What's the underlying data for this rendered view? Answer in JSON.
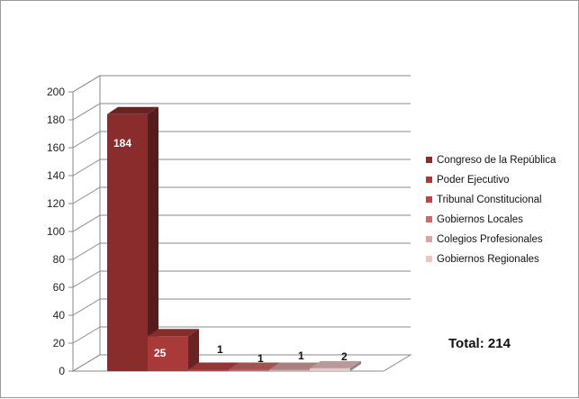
{
  "chart_data": {
    "type": "bar",
    "style": "3d",
    "categories": [
      "Congreso de la República",
      "Poder Ejecutivo",
      "Tribunal Constitucional",
      "Gobiernos Locales",
      "Colegios Profesionales",
      "Gobiernos Regionales"
    ],
    "values": [
      184,
      25,
      1,
      1,
      1,
      2
    ],
    "data_labels": [
      "184",
      "25",
      "1",
      "1",
      "1",
      "2"
    ],
    "colors": [
      "#8b2c2c",
      "#a83a3a",
      "#bf4444",
      "#cd6a6a",
      "#dda3a3",
      "#ecc6c6"
    ],
    "ylim": [
      0,
      200
    ],
    "yticks": [
      "0",
      "20",
      "40",
      "60",
      "80",
      "100",
      "120",
      "140",
      "160",
      "180",
      "200"
    ],
    "grid": true,
    "legend_position": "right",
    "title": "",
    "xlabel": "",
    "ylabel": ""
  },
  "annotation": {
    "total_text": "Total: 214"
  }
}
